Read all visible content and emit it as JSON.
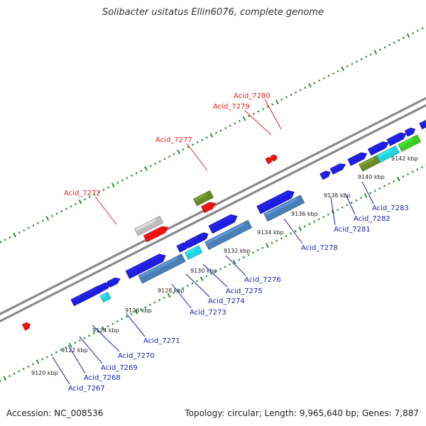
{
  "title": "Solibacter usitatus Ellin6076, complete genome",
  "footer": {
    "accession": "Accession: NC_008536",
    "topology": "Topology: circular; Length: 9,965,640 bp; Genes: 7,887"
  },
  "colors": {
    "backbone": "#8a8a8a",
    "ticks": "#2d8a2d",
    "gene_blue": "#1e1ee0",
    "gene_steel": "#4a7fb5",
    "gene_cyan": "#22d2e0",
    "gene_red": "#ee1111",
    "gene_olive": "#6b8a2a",
    "gene_green": "#3ccc22",
    "gene_grey": "#bdbdbd",
    "label_blue": "#1c1cb4",
    "label_red": "#dd2222"
  },
  "scale_labels": [
    "9120 kbp",
    "9122 kbp",
    "9124 kbp",
    "9126 kbp",
    "9128 kbp",
    "9130 kbp",
    "9132 kbp",
    "9134 kbp",
    "9136 kbp",
    "9138 kbp",
    "9140 kbp",
    "9142 kbp"
  ],
  "gene_labels": [
    "Acid_7267",
    "Acid_7268",
    "Acid_7269",
    "Acid_7270",
    "Acid_7271",
    "Acid_7273",
    "Acid_7274",
    "Acid_7275",
    "Acid_7276",
    "Acid_7278",
    "Acid_7281",
    "Acid_7282",
    "Acid_7283",
    "Acid_7272",
    "Acid_7277",
    "Acid_7279",
    "Acid_7280"
  ]
}
